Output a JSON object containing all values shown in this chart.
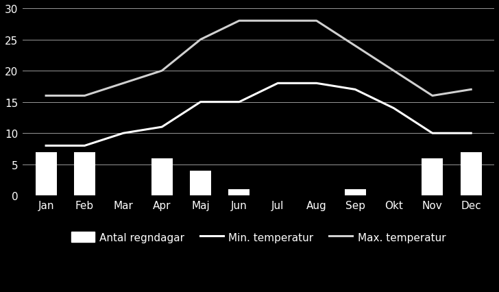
{
  "months": [
    "Jan",
    "Feb",
    "Mar",
    "Apr",
    "Maj",
    "Jun",
    "Jul",
    "Aug",
    "Sep",
    "Okt",
    "Nov",
    "Dec"
  ],
  "rain_days": [
    7,
    7,
    0,
    6,
    4,
    1,
    0,
    0,
    1,
    0,
    6,
    7
  ],
  "min_temp": [
    8,
    8,
    10,
    11,
    15,
    15,
    18,
    18,
    17,
    14,
    10,
    10
  ],
  "max_temp": [
    16,
    16,
    18,
    20,
    25,
    28,
    28,
    28,
    24,
    20,
    16,
    17
  ],
  "background_color": "#000000",
  "bar_color": "#ffffff",
  "line_color_min": "#ffffff",
  "line_color_max": "#d0d0d0",
  "text_color": "#ffffff",
  "grid_color": "#ffffff",
  "ylim": [
    0,
    30
  ],
  "yticks": [
    0,
    5,
    10,
    15,
    20,
    25,
    30
  ],
  "legend_labels": [
    "Antal regndagar",
    "Min. temperatur",
    "Max. temperatur"
  ],
  "bar_width": 0.55,
  "line_width": 2.2,
  "grid_linewidth": 0.7,
  "figsize": [
    7.28,
    4.27
  ],
  "dpi": 100,
  "fontsize_ticks": 11,
  "fontsize_legend": 11
}
